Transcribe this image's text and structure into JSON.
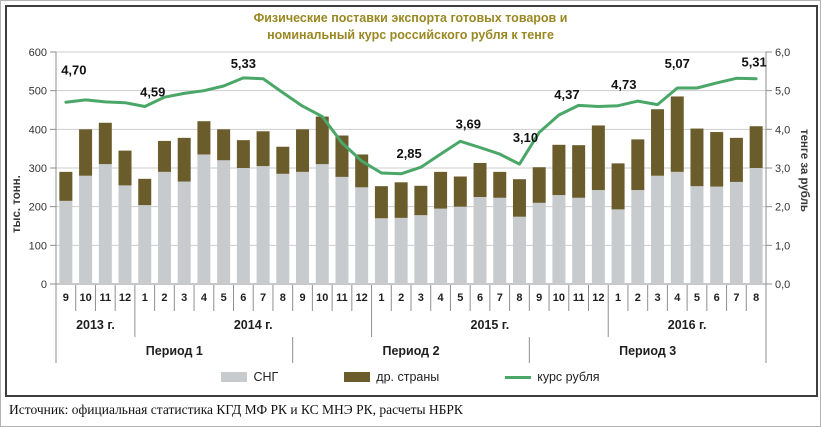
{
  "source": {
    "text": "Источник: официальная статистика КГД МФ РК и КС МНЭ РК, расчеты НБРК"
  },
  "colors": {
    "title": "#9a8822",
    "grid": "#cdcdcd",
    "axis": "#8f8f8f",
    "frame": "#3e3e3e",
    "sng_bar": "#c7cbce",
    "other_bar": "#6b5c2b",
    "rate_line": "#4aa768"
  },
  "chart_data": {
    "type": "stacked-bar+line",
    "title_line1": "Физические поставки экспорта готовых товаров и",
    "title_line2": "номинальный курс российского рубля к тенге",
    "grid": true,
    "legend_position": "bottom",
    "left_axis": {
      "label": "тыс. тонн.",
      "min": 0,
      "max": 600,
      "step": 100,
      "ticks": [
        "600",
        "500",
        "400",
        "300",
        "200",
        "100",
        "0"
      ]
    },
    "right_axis": {
      "label": "тенге за рубль",
      "min": 0.0,
      "max": 6.0,
      "step": 1.0,
      "ticks": [
        "6,0",
        "5,0",
        "4,0",
        "3,0",
        "2,0",
        "1,0",
        "0,0"
      ]
    },
    "months": [
      "9",
      "10",
      "11",
      "12",
      "1",
      "2",
      "3",
      "4",
      "5",
      "6",
      "7",
      "8",
      "9",
      "10",
      "11",
      "12",
      "1",
      "2",
      "3",
      "4",
      "5",
      "6",
      "7",
      "8",
      "9",
      "10",
      "11",
      "12",
      "1",
      "2",
      "3",
      "4",
      "5",
      "6",
      "7",
      "8"
    ],
    "year_groups": [
      {
        "label": "2013 г.",
        "span": 4
      },
      {
        "label": "2014 г.",
        "span": 12
      },
      {
        "label": "2015 г.",
        "span": 12
      },
      {
        "label": "2016 г.",
        "span": 8
      }
    ],
    "period_groups": [
      {
        "label": "Период 1",
        "span": 12
      },
      {
        "label": "Период 2",
        "span": 12
      },
      {
        "label": "Период 3",
        "span": 12
      }
    ],
    "series": [
      {
        "name": "СНГ",
        "type": "bar-stack",
        "axis": "left",
        "color": "#c7cbce",
        "values": [
          215,
          280,
          310,
          255,
          204,
          290,
          265,
          335,
          320,
          300,
          305,
          285,
          290,
          310,
          277,
          250,
          170,
          171,
          178,
          195,
          200,
          225,
          223,
          174,
          210,
          230,
          223,
          243,
          193,
          243,
          280,
          290,
          253,
          252,
          264,
          300
        ]
      },
      {
        "name": "др. страны",
        "type": "bar-stack",
        "axis": "left",
        "color": "#6b5c2b",
        "values": [
          75,
          120,
          107,
          90,
          68,
          80,
          113,
          86,
          80,
          72,
          90,
          70,
          110,
          123,
          107,
          85,
          83,
          92,
          76,
          95,
          78,
          88,
          67,
          97,
          92,
          130,
          136,
          167,
          119,
          131,
          172,
          195,
          149,
          141,
          114,
          108
        ]
      },
      {
        "name": "курс рубля",
        "type": "line",
        "axis": "right",
        "color": "#4aa768",
        "values": [
          4.7,
          4.76,
          4.71,
          4.69,
          4.59,
          4.83,
          4.93,
          5.0,
          5.12,
          5.33,
          5.31,
          4.95,
          4.6,
          4.33,
          3.65,
          3.18,
          2.87,
          2.85,
          3.02,
          3.36,
          3.69,
          3.53,
          3.36,
          3.1,
          3.92,
          4.37,
          4.62,
          4.59,
          4.61,
          4.73,
          4.64,
          5.07,
          5.07,
          5.2,
          5.32,
          5.31
        ],
        "point_labels": [
          {
            "index": 0,
            "text": "4,70",
            "dx": 8,
            "dy": -32
          },
          {
            "index": 4,
            "text": "4,59",
            "dx": 8,
            "dy": -14
          },
          {
            "index": 9,
            "text": "5,33",
            "dx": 0,
            "dy": -14
          },
          {
            "index": 17,
            "text": "2,85",
            "dx": 8,
            "dy": -20
          },
          {
            "index": 20,
            "text": "3,69",
            "dx": 8,
            "dy": -17
          },
          {
            "index": 23,
            "text": "3,10",
            "dx": 6,
            "dy": -26
          },
          {
            "index": 25,
            "text": "4,37",
            "dx": 8,
            "dy": -20
          },
          {
            "index": 29,
            "text": "4,73",
            "dx": -14,
            "dy": -16
          },
          {
            "index": 31,
            "text": "5,07",
            "dx": 0,
            "dy": -24
          },
          {
            "index": 35,
            "text": "5,31",
            "dx": -2,
            "dy": -16
          }
        ]
      }
    ]
  }
}
